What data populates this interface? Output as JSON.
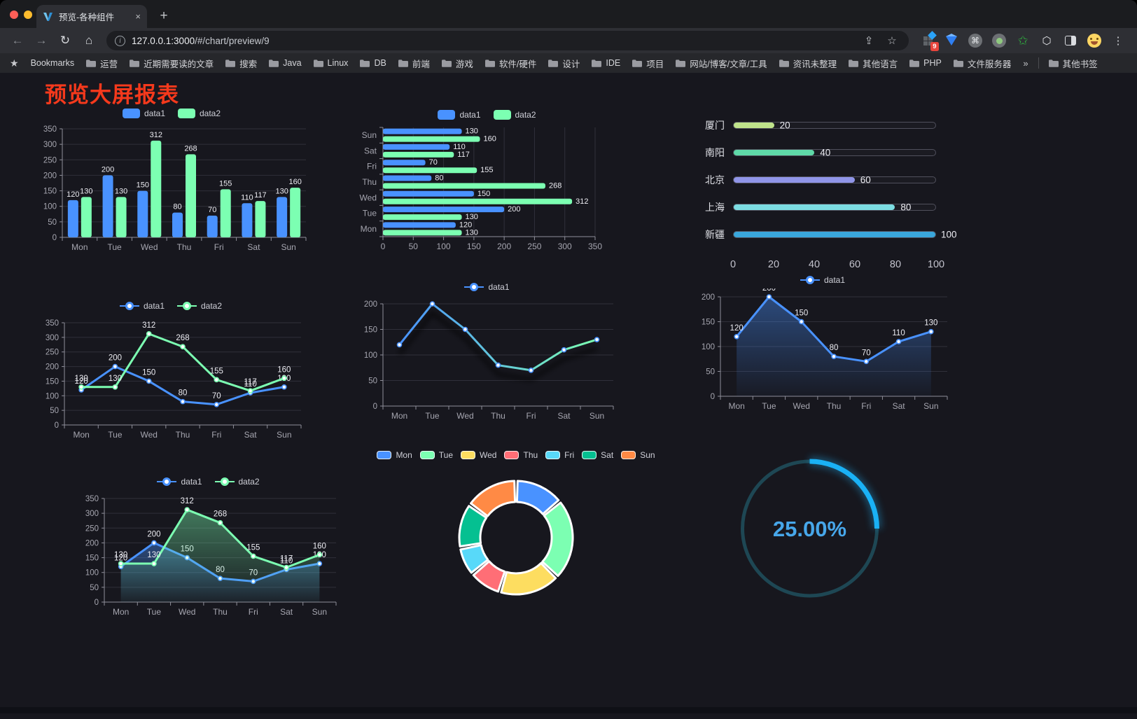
{
  "browser": {
    "tab_title": "预览-各种组件",
    "new_tab_label": "+",
    "close_tab_label": "×",
    "url_host": "127.0.0.1:3000",
    "url_path": "/#/chart/preview/9",
    "extension_badge": "9",
    "menu_dots": "⋮",
    "back_icon": "←",
    "forward_icon": "→",
    "reload_icon": "↻",
    "home_icon": "⌂",
    "share_icon": "⇪",
    "star_icon": "☆",
    "command_glyph": "⌘",
    "bookmarks_label": "Bookmarks",
    "bookmarks": [
      "运营",
      "近期需要读的文章",
      "搜索",
      "Java",
      "Linux",
      "DB",
      "前端",
      "游戏",
      "软件/硬件",
      "设计",
      "IDE",
      "项目",
      "网站/博客/文章/工具",
      "资讯未整理",
      "其他语言",
      "PHP",
      "文件服务器"
    ],
    "bookmarks_overflow": "»",
    "other_bookmarks": "其他书签"
  },
  "page": {
    "title": "预览大屏报表",
    "title_color": "#f5391c"
  },
  "chart_data": [
    {
      "id": "grouped-bar-chart",
      "type": "bar",
      "categories": [
        "Mon",
        "Tue",
        "Wed",
        "Thu",
        "Fri",
        "Sat",
        "Sun"
      ],
      "series": [
        {
          "name": "data1",
          "color": "#4992ff",
          "values": [
            120,
            200,
            150,
            80,
            70,
            110,
            130
          ]
        },
        {
          "name": "data2",
          "color": "#7cffb2",
          "values": [
            130,
            130,
            312,
            268,
            155,
            117,
            160
          ]
        }
      ],
      "ylim": [
        0,
        350
      ],
      "ytick_step": 50,
      "grid": true,
      "legend_position": "top",
      "data_labels": true
    },
    {
      "id": "horizontal-bar-chart",
      "type": "bar-horizontal",
      "categories": [
        "Mon",
        "Tue",
        "Wed",
        "Thu",
        "Fri",
        "Sat",
        "Sun"
      ],
      "categories_display_top_to_bottom": [
        "Sun",
        "Sat",
        "Fri",
        "Thu",
        "Wed",
        "Tue",
        "Mon"
      ],
      "series": [
        {
          "name": "data1",
          "color": "#4992ff",
          "values": [
            120,
            200,
            150,
            80,
            70,
            110,
            130
          ]
        },
        {
          "name": "data2",
          "color": "#7cffb2",
          "values": [
            130,
            130,
            312,
            268,
            155,
            117,
            160
          ]
        }
      ],
      "xlim": [
        0,
        350
      ],
      "xtick_step": 50,
      "grid": true,
      "legend_position": "top",
      "data_labels": true
    },
    {
      "id": "city-progress-chart",
      "type": "bar-horizontal",
      "xlim": [
        0,
        100
      ],
      "xticks": [
        0,
        20,
        40,
        60,
        80,
        100
      ],
      "items": [
        {
          "label": "厦门",
          "value": 20,
          "color": "#bfe38b"
        },
        {
          "label": "南阳",
          "value": 40,
          "color": "#5fd9a8"
        },
        {
          "label": "北京",
          "value": 60,
          "color": "#9095e8"
        },
        {
          "label": "上海",
          "value": 80,
          "color": "#7cdde2"
        },
        {
          "label": "新疆",
          "value": 100,
          "color": "#3aa7dc"
        }
      ]
    },
    {
      "id": "multi-line-chart",
      "type": "line",
      "categories": [
        "Mon",
        "Tue",
        "Wed",
        "Thu",
        "Fri",
        "Sat",
        "Sun"
      ],
      "series": [
        {
          "name": "data1",
          "color": "#4992ff",
          "values": [
            120,
            200,
            150,
            80,
            70,
            110,
            130
          ]
        },
        {
          "name": "data2",
          "color": "#7cffb2",
          "values": [
            130,
            130,
            312,
            268,
            155,
            117,
            160
          ]
        }
      ],
      "ylim": [
        0,
        350
      ],
      "ytick_step": 50,
      "grid": true,
      "legend_position": "top",
      "data_labels": true
    },
    {
      "id": "gradient-line-chart",
      "type": "line",
      "categories": [
        "Mon",
        "Tue",
        "Wed",
        "Thu",
        "Fri",
        "Sat",
        "Sun"
      ],
      "series": [
        {
          "name": "data1",
          "color": "#4992ff",
          "gradient": [
            "#4992ff",
            "#7cffb2"
          ],
          "values": [
            120,
            200,
            150,
            80,
            70,
            110,
            130
          ]
        }
      ],
      "ylim": [
        0,
        200
      ],
      "ytick_step": 50,
      "grid": true,
      "legend_position": "top",
      "data_labels": false,
      "shadow": true
    },
    {
      "id": "area-line-chart",
      "type": "area",
      "categories": [
        "Mon",
        "Tue",
        "Wed",
        "Thu",
        "Fri",
        "Sat",
        "Sun"
      ],
      "series": [
        {
          "name": "data1",
          "color": "#4992ff",
          "values": [
            120,
            200,
            150,
            80,
            70,
            110,
            130
          ]
        }
      ],
      "ylim": [
        0,
        200
      ],
      "ytick_step": 50,
      "grid": true,
      "legend_position": "top",
      "data_labels": true
    },
    {
      "id": "multi-area-chart",
      "type": "area",
      "categories": [
        "Mon",
        "Tue",
        "Wed",
        "Thu",
        "Fri",
        "Sat",
        "Sun"
      ],
      "series": [
        {
          "name": "data1",
          "color": "#4992ff",
          "values": [
            120,
            200,
            150,
            80,
            70,
            110,
            130
          ]
        },
        {
          "name": "data2",
          "color": "#7cffb2",
          "values": [
            130,
            130,
            312,
            268,
            155,
            117,
            160
          ]
        }
      ],
      "ylim": [
        0,
        350
      ],
      "ytick_step": 50,
      "grid": true,
      "legend_position": "top",
      "data_labels": true
    },
    {
      "id": "donut-chart",
      "type": "pie",
      "legend_position": "top",
      "slices": [
        {
          "label": "Mon",
          "value": 120,
          "color": "#4992ff"
        },
        {
          "label": "Tue",
          "value": 200,
          "color": "#7cffb2"
        },
        {
          "label": "Wed",
          "value": 150,
          "color": "#fddd60"
        },
        {
          "label": "Thu",
          "value": 80,
          "color": "#ff6e76"
        },
        {
          "label": "Fri",
          "value": 70,
          "color": "#58d9f9"
        },
        {
          "label": "Sat",
          "value": 110,
          "color": "#05c091"
        },
        {
          "label": "Sun",
          "value": 130,
          "color": "#ff8a45"
        }
      ]
    },
    {
      "id": "gauge-chart",
      "type": "gauge",
      "percent": 25,
      "label": "25.00%",
      "progress_color": "#1ab1f5",
      "track_color": "#1e4754",
      "text_color": "#47a7ea"
    }
  ]
}
